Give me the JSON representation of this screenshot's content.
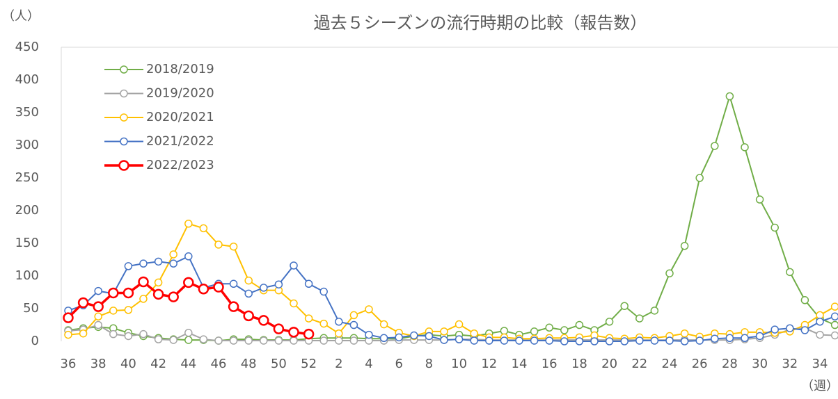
{
  "chart_data": {
    "type": "line",
    "title": "過去５シーズンの流行時期の比較（報告数）",
    "y_axis_label": "（人）",
    "x_axis_label": "（週）",
    "categories": [
      "36",
      null,
      "38",
      null,
      "40",
      null,
      "42",
      null,
      "44",
      null,
      "46",
      null,
      "48",
      null,
      "50",
      null,
      "52",
      null,
      "2",
      null,
      "4",
      null,
      "6",
      null,
      "8",
      null,
      "10",
      null,
      "12",
      null,
      "14",
      null,
      "16",
      null,
      "18",
      null,
      "20",
      null,
      "22",
      null,
      "24",
      null,
      "26",
      null,
      "28",
      null,
      "30",
      null,
      "32",
      null,
      "34",
      null
    ],
    "ylim": [
      0,
      450
    ],
    "yticks": [
      0,
      50,
      100,
      150,
      200,
      250,
      300,
      350,
      400,
      450
    ],
    "grid": false,
    "legend": "upper left",
    "series": [
      {
        "name": "2018/2019",
        "color": "#70ad47",
        "values": [
          17,
          20,
          22,
          20,
          13,
          8,
          5,
          3,
          2,
          2,
          1,
          3,
          3,
          2,
          2,
          2,
          4,
          5,
          5,
          5,
          4,
          4,
          4,
          8,
          10,
          8,
          10,
          8,
          12,
          16,
          10,
          15,
          21,
          17,
          25,
          17,
          30,
          54,
          35,
          47,
          104,
          146,
          250,
          299,
          375,
          297,
          217,
          174,
          106,
          63,
          35,
          25
        ]
      },
      {
        "name": "2019/2020",
        "color": "#a5a5a5",
        "values": [
          16,
          18,
          25,
          11,
          8,
          11,
          3,
          2,
          13,
          3,
          1,
          1,
          1,
          1,
          1,
          1,
          1,
          1,
          1,
          1,
          1,
          1,
          2,
          2,
          2,
          2,
          3,
          3,
          2,
          2,
          2,
          2,
          2,
          2,
          2,
          2,
          2,
          2,
          2,
          2,
          2,
          2,
          2,
          2,
          2,
          3,
          5,
          10,
          18,
          20,
          10,
          9
        ]
      },
      {
        "name": "2020/2021",
        "color": "#ffc000",
        "values": [
          10,
          12,
          38,
          47,
          48,
          65,
          90,
          133,
          180,
          173,
          148,
          145,
          93,
          78,
          78,
          58,
          35,
          27,
          12,
          40,
          49,
          26,
          13,
          8,
          15,
          15,
          26,
          12,
          6,
          6,
          4,
          4,
          5,
          5,
          6,
          9,
          5,
          4,
          6,
          5,
          8,
          12,
          7,
          12,
          11,
          14,
          14,
          13,
          15,
          25,
          40,
          53
        ]
      },
      {
        "name": "2021/2022",
        "color": "#4472c4",
        "values": [
          47,
          55,
          77,
          73,
          115,
          119,
          122,
          119,
          130,
          82,
          88,
          88,
          73,
          82,
          87,
          116,
          88,
          76,
          30,
          25,
          10,
          5,
          6,
          9,
          8,
          2,
          3,
          1,
          1,
          1,
          1,
          1,
          1,
          0,
          0,
          0,
          0,
          0,
          1,
          1,
          1,
          0,
          1,
          4,
          5,
          5,
          8,
          18,
          20,
          17,
          30,
          38
        ]
      },
      {
        "name": "2022/2023",
        "color": "#ff0000",
        "values": [
          36,
          59,
          53,
          74,
          74,
          91,
          72,
          68,
          90,
          80,
          83,
          53,
          39,
          32,
          19,
          14,
          11,
          null,
          null,
          null,
          null,
          null,
          null,
          null,
          null,
          null,
          null,
          null,
          null,
          null,
          null,
          null,
          null,
          null,
          null,
          null,
          null,
          null,
          null,
          null,
          null,
          null,
          null,
          null,
          null,
          null,
          null,
          null,
          null,
          null,
          null,
          null
        ]
      }
    ]
  }
}
